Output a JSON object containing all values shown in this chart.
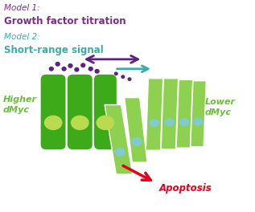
{
  "title1_italic": "Model 1:",
  "title1_bold": "Growth factor titration",
  "title2_italic": "Model 2:",
  "title2_bold": "Short-range signal",
  "label_higher": "Higher\ndMyc",
  "label_lower": "Lower\ndMyc",
  "label_apoptosis": "Apoptosis",
  "color_model1_italic": "#7B2D8B",
  "color_model1_bold": "#7B2D8B",
  "color_model2_italic": "#3AADA8",
  "color_model2_bold": "#3AADA8",
  "color_higher": "#6ABF3A",
  "color_lower": "#6ABF3A",
  "color_apoptosis": "#E8001C",
  "color_cell_dark": "#3DAA1A",
  "color_cell_dark2": "#45B820",
  "color_cell_light": "#8ED050",
  "color_cell_light2": "#A0D868",
  "color_nuc_big": "#BADA50",
  "color_nuc_small": "#80CCCC",
  "color_dots": "#5C2480",
  "color_arrow_double": "#5C2480",
  "color_arrow_teal": "#3AADA8",
  "color_arrow_red": "#E8001C",
  "bg_color": "#FFFFFF"
}
